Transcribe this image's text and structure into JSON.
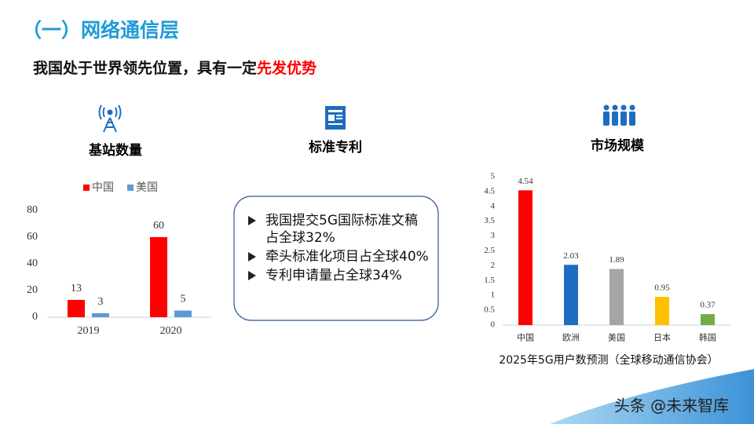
{
  "title": "（一）网络通信层",
  "subtitle": {
    "text": "我国处于世界领先位置，具有一定",
    "highlight": "先发优势"
  },
  "sections": [
    {
      "label": "基站数量"
    },
    {
      "label": "标准专利"
    },
    {
      "label": "市场规模"
    }
  ],
  "bullets": [
    "我国提交5G国际标准文稿占全球32%",
    "牵头标准化项目占全球40%",
    "专利申请量占全球34%"
  ],
  "watermark": "头条 @未来智库",
  "chart_data": [
    {
      "type": "bar",
      "categories": [
        "2019",
        "2020"
      ],
      "series": [
        {
          "name": "中国",
          "color": "#ff0000",
          "values": [
            13,
            60
          ]
        },
        {
          "name": "美国",
          "color": "#5b9bd5",
          "values": [
            3,
            5
          ]
        }
      ],
      "ylim": [
        0,
        80
      ],
      "yticks": [
        0,
        20,
        40,
        60,
        80
      ],
      "legend": "top"
    },
    {
      "type": "bar",
      "categories": [
        "中国",
        "欧洲",
        "美国",
        "日本",
        "韩国"
      ],
      "values": [
        4.54,
        2.03,
        1.89,
        0.95,
        0.37
      ],
      "colors": [
        "#ff0000",
        "#1f6dc0",
        "#a5a5a5",
        "#ffc000",
        "#70ad47"
      ],
      "ylim": [
        0,
        5
      ],
      "yticks": [
        0,
        0.5,
        1,
        1.5,
        2,
        2.5,
        3,
        3.5,
        4,
        4.5,
        5
      ],
      "caption": "2025年5G用户数预测（全球移动通信协会）"
    }
  ]
}
